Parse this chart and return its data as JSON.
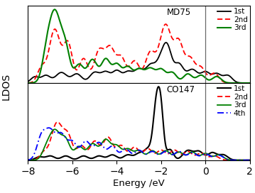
{
  "xlim": [
    -8,
    2
  ],
  "xlabel": "Energy /eV",
  "ylabel": "LDOS",
  "vline_x": 0,
  "top_label": "MD75",
  "bottom_label": "CO147",
  "top_legend": [
    "1st",
    "2nd",
    "3rd"
  ],
  "bottom_legend": [
    "1st",
    "2nd",
    "3rd",
    "4th"
  ],
  "line_colors": [
    "black",
    "red",
    "green",
    "blue"
  ],
  "figsize": [
    3.59,
    2.72
  ],
  "dpi": 100,
  "xticks": [
    -8,
    -6,
    -4,
    -2,
    0,
    2
  ]
}
